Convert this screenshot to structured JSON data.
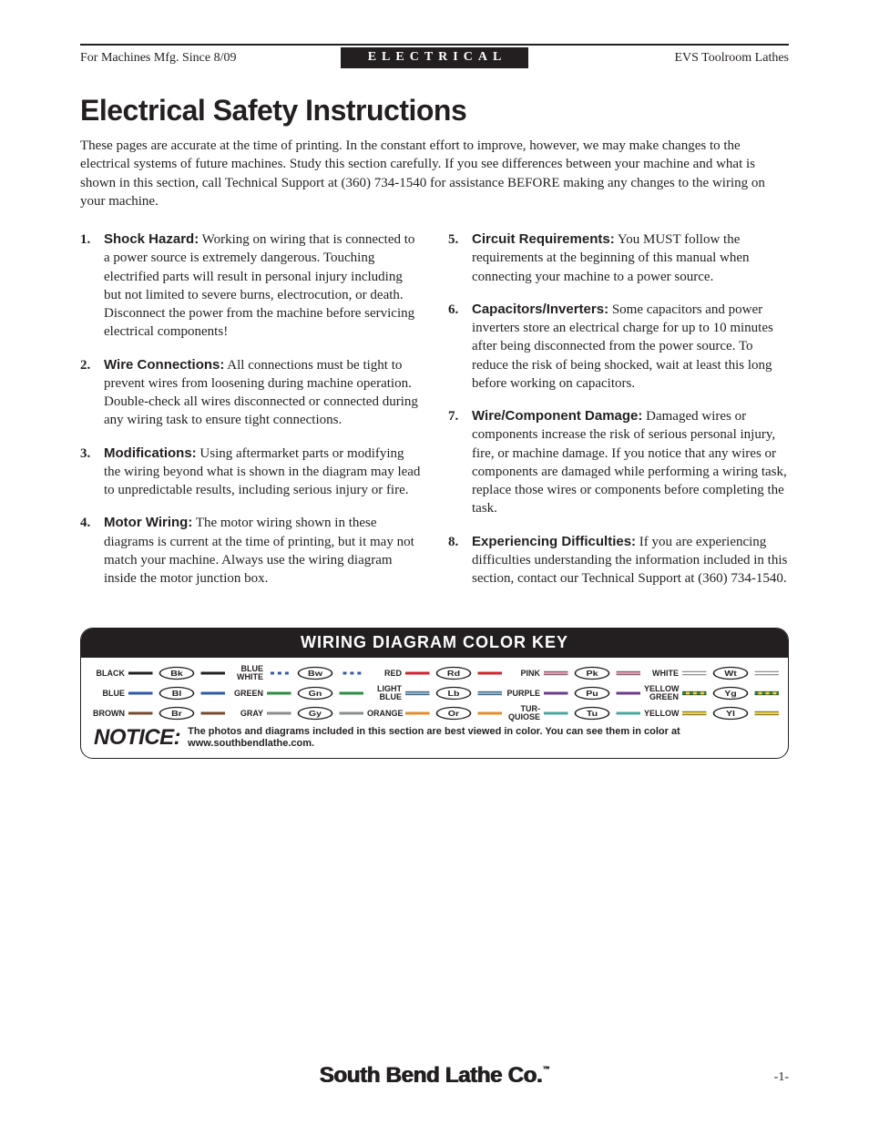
{
  "header": {
    "left": "For Machines Mfg. Since 8/09",
    "center": "ELECTRICAL",
    "right": "EVS Toolroom Lathes"
  },
  "title": "Electrical Safety Instructions",
  "intro": "These pages are accurate at the time of printing. In the constant effort to improve, however, we may make changes to the electrical systems of future machines. Study this section carefully. If you see differences between your machine and what is shown in this section, call Technical Support at (360) 734-1540 for assistance BEFORE making any changes to the wiring on your machine.",
  "left_items": [
    {
      "num": "1.",
      "label": "Shock Hazard:",
      "text": " Working on wiring that is connected to a power source is extremely dangerous. Touching electrified parts will result in personal injury including but not limited to severe burns, electrocution, or death. Disconnect the power from the machine before servicing electrical components!"
    },
    {
      "num": "2.",
      "label": "Wire Connections:",
      "text": " All connections must be tight to prevent wires from loosening during machine operation. Double-check all wires disconnected or connected during any wiring task to ensure tight connections."
    },
    {
      "num": "3.",
      "label": "Modifications:",
      "text": " Using aftermarket parts or modifying the wiring beyond what is shown in the diagram may lead to unpredictable results, including serious injury or fire."
    },
    {
      "num": "4.",
      "label": "Motor Wiring:",
      "text": " The motor wiring shown in these diagrams is current at the time of printing, but it may not match your machine. Always use the wiring diagram inside the motor junction box."
    }
  ],
  "right_items": [
    {
      "num": "5.",
      "label": "Circuit Requirements:",
      "text": " You MUST follow the requirements at the beginning of this manual when connecting your machine to a power source."
    },
    {
      "num": "6.",
      "label": "Capacitors/Inverters:",
      "text": " Some capacitors and power inverters store an electrical charge for up to 10 minutes after being disconnected from the power source. To reduce the risk of being shocked, wait at least this long before working on capacitors."
    },
    {
      "num": "7.",
      "label": "Wire/Component Damage:",
      "text": " Damaged wires or components increase the risk of serious personal injury, fire, or machine damage. If you notice that any wires or components are damaged while performing a wiring task, replace those wires or components before completing the task."
    },
    {
      "num": "8.",
      "label": "Experiencing Difficulties:",
      "text": " If you are experiencing difficulties understanding the information included in this section, contact our Technical Support at (360) 734-1540."
    }
  ],
  "colorkey": {
    "title": "WIRING DIAGRAM COLOR KEY",
    "items": [
      {
        "label": "BLACK",
        "code": "Bk",
        "c1": "#231f20",
        "c2": "#231f20"
      },
      {
        "label": "BLUE\nWHITE",
        "code": "Bw",
        "c1": "#2e5aa8",
        "c2": "#ffffff"
      },
      {
        "label": "RED",
        "code": "Rd",
        "c1": "#d2232a",
        "c2": "#d2232a"
      },
      {
        "label": "PINK",
        "code": "Pk",
        "c1": "#e79bb5",
        "c2": "#e79bb5"
      },
      {
        "label": "WHITE",
        "code": "Wt",
        "c1": "#ffffff",
        "c2": "#ffffff"
      },
      {
        "label": "BLUE",
        "code": "Bl",
        "c1": "#2e5aa8",
        "c2": "#2e5aa8"
      },
      {
        "label": "GREEN",
        "code": "Gn",
        "c1": "#2d8e3f",
        "c2": "#2d8e3f"
      },
      {
        "label": "LIGHT\nBLUE",
        "code": "Lb",
        "c1": "#7fb4d8",
        "c2": "#7fb4d8"
      },
      {
        "label": "PURPLE",
        "code": "Pu",
        "c1": "#6d3a8f",
        "c2": "#6d3a8f"
      },
      {
        "label": "YELLOW\nGREEN",
        "code": "Yg",
        "c1": "#f3d33c",
        "c2": "#2d8e3f"
      },
      {
        "label": "BROWN",
        "code": "Br",
        "c1": "#7a4a2b",
        "c2": "#7a4a2b"
      },
      {
        "label": "GRAY",
        "code": "Gy",
        "c1": "#8a8c8e",
        "c2": "#8a8c8e"
      },
      {
        "label": "ORANGE",
        "code": "Or",
        "c1": "#e48c2b",
        "c2": "#e48c2b"
      },
      {
        "label": "TUR-\nQUIOSE",
        "code": "Tu",
        "c1": "#4aa8a0",
        "c2": "#4aa8a0"
      },
      {
        "label": "YELLOW",
        "code": "Yl",
        "c1": "#f3d33c",
        "c2": "#f3d33c"
      }
    ],
    "notice_label": "NOTICE:",
    "notice_text": "The photos and diagrams included in this section are best viewed in color. You can see them in color at www.southbendlathe.com."
  },
  "footer": {
    "brand": "South Bend Lathe Co.",
    "page": "-1-"
  },
  "style": {
    "page_bg": "#ffffff",
    "text_color": "#231f20",
    "header_bar_bg": "#231f20",
    "colorkey_border_radius": 14
  }
}
